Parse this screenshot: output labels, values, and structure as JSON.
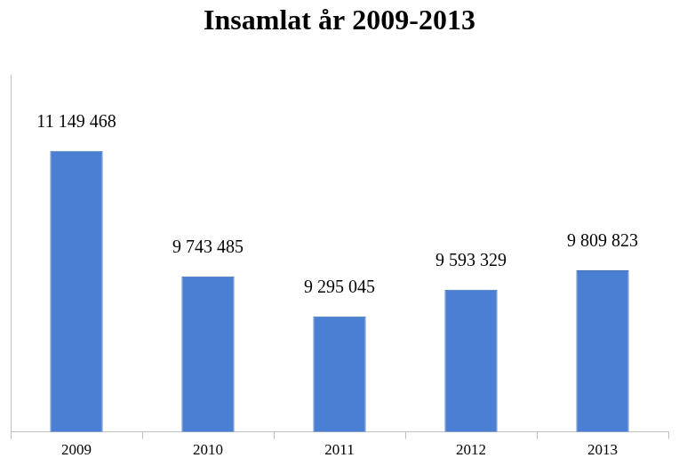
{
  "chart_data": {
    "type": "bar",
    "title": "Insamlat år 2009-2013",
    "categories": [
      "2009",
      "2010",
      "2011",
      "2012",
      "2013"
    ],
    "values": [
      11149468,
      9743485,
      9295045,
      9593329,
      9809823
    ],
    "value_labels": [
      "11 149 468",
      "9 743 485",
      "9 295 045",
      "9 593 329",
      "9 809 823"
    ],
    "color": "#4a7fd3",
    "ylim": [
      8000000,
      12000000
    ],
    "grid": false,
    "data_labels": true,
    "tick_labels": "x"
  }
}
